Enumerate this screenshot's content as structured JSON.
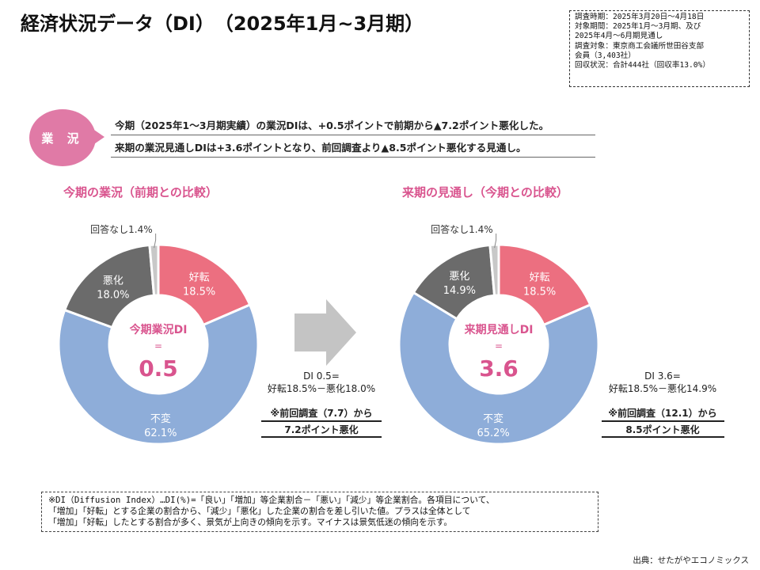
{
  "title": "経済状況データ（DI）　（2025年1月~3月期）",
  "info_box": [
    "調査時期：2025年3月20日～4月18日",
    "対象期間：2025年1月～3月期、及び",
    "2025年4月～6月期見通し",
    "調査対象：東京商工会議所世田谷支部",
    "会員（3,403社）",
    "回収状況：合計444社（回収率13.0%）"
  ],
  "badge": "業 況",
  "summary": [
    "今期（2025年1～3月期実績）の業況DIは、+0.5ポイントで前期から▲7.2ポイント悪化した。",
    "来期の業況見通しDIは+3.6ポイントとなり、前回調査より▲8.5ポイント悪化する見通し。"
  ],
  "colors": {
    "good": "#ec6f80",
    "bad": "#6b6b6b",
    "flat": "#8eadd9",
    "none": "#c8c8c8",
    "accent": "#d9548e",
    "arrow": "#c4c4c4"
  },
  "arrow_icon": "right-arrow-icon",
  "chart_data": [
    {
      "type": "pie",
      "title": "今期の業況（前期との比較）",
      "slices": [
        {
          "name": "好転",
          "value": 18.5,
          "label": "18.5%"
        },
        {
          "name": "不変",
          "value": 62.1,
          "label": "62.1%"
        },
        {
          "name": "悪化",
          "value": 18.0,
          "label": "18.0%"
        },
        {
          "name": "回答なし",
          "value": 1.4,
          "label": "回答なし1.4%"
        }
      ],
      "center_label": "今期業況DI",
      "center_eq": "=",
      "center_value": "0.5",
      "di_line1": "DI 0.5=",
      "di_line2": "好転18.5%－悪化18.0%",
      "prev_line1": "※前回調査（7.7）から",
      "prev_line2": "7.2ポイント悪化"
    },
    {
      "type": "pie",
      "title": "来期の見通し（今期との比較）",
      "slices": [
        {
          "name": "好転",
          "value": 18.5,
          "label": "18.5%"
        },
        {
          "name": "不変",
          "value": 65.2,
          "label": "65.2%"
        },
        {
          "name": "悪化",
          "value": 14.9,
          "label": "14.9%"
        },
        {
          "name": "回答なし",
          "value": 1.4,
          "label": "回答なし1.4%"
        }
      ],
      "center_label": "来期見通しDI",
      "center_eq": "=",
      "center_value": "3.6",
      "di_line1": "DI 3.6=",
      "di_line2": "好転18.5%－悪化14.9%",
      "prev_line1": "※前回調査（12.1）から",
      "prev_line2": "8.5ポイント悪化"
    }
  ],
  "footnote": [
    "※DI（Diffusion Index）…DI(%)=「良い」「増加」等企業割合－「悪い」「減少」等企業割合。各項目について、",
    "「増加」「好転」とする企業の割合から、「減少」「悪化」した企業の割合を差し引いた値。プラスは全体として",
    "「増加」「好転」したとする割合が多く、景気が上向きの傾向を示す。マイナスは景気低迷の傾向を示す。"
  ],
  "source": "出典：せたがやエコノミックス"
}
